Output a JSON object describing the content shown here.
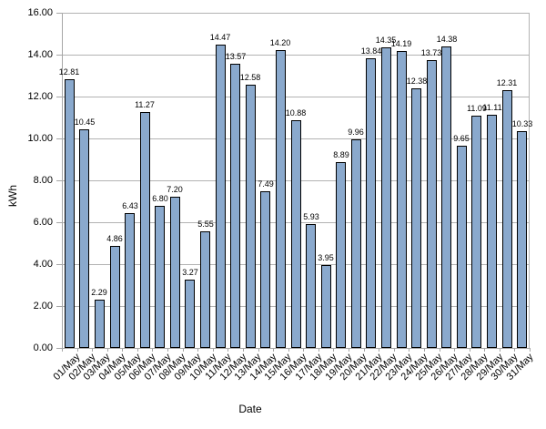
{
  "chart_data": {
    "type": "bar",
    "title": "",
    "xlabel": "Date",
    "ylabel": "kWh",
    "categories": [
      "01/May",
      "02/May",
      "03/May",
      "04/May",
      "05/May",
      "06/May",
      "07/May",
      "08/May",
      "09/May",
      "10/May",
      "11/May",
      "12/May",
      "13/May",
      "14/May",
      "15/May",
      "16/May",
      "17/May",
      "18/May",
      "19/May",
      "20/May",
      "21/May",
      "22/May",
      "23/May",
      "24/May",
      "25/May",
      "26/May",
      "27/May",
      "28/May",
      "29/May",
      "30/May",
      "31/May"
    ],
    "values": [
      12.81,
      10.45,
      2.29,
      4.86,
      6.43,
      11.27,
      6.8,
      7.2,
      3.27,
      5.55,
      14.47,
      13.57,
      12.58,
      7.49,
      14.2,
      10.88,
      5.93,
      3.95,
      8.89,
      9.96,
      13.84,
      14.35,
      14.19,
      12.38,
      13.73,
      14.38,
      9.65,
      11.09,
      11.11,
      12.31,
      10.33
    ],
    "data_labels": [
      "12.81",
      "10.45",
      "2.29",
      "4.86",
      "6.43",
      "11.27",
      "6.80",
      "7.20",
      "3.27",
      "5.55",
      "14.47",
      "13.57",
      "12.58",
      "7.49",
      "14.20",
      "10.88",
      "5.93",
      "3.95",
      "8.89",
      "9.96",
      "13.84",
      "14.35",
      "14.19",
      "12.38",
      "13.73",
      "14.38",
      "9.65",
      "11.09",
      "11.11",
      "12.31",
      "10.33"
    ],
    "ylim": [
      0,
      16
    ],
    "ytick_step": 2,
    "ytick_labels": [
      "0.00",
      "2.00",
      "4.00",
      "6.00",
      "8.00",
      "10.00",
      "12.00",
      "14.00",
      "16.00"
    ],
    "grid": true,
    "legend": "none",
    "colors": {
      "bar_fill": "#8AA9CD",
      "bar_border": "#000000",
      "gridline": "#b3b3b3",
      "axis_line": "#a6a6a6",
      "text": "#000000",
      "background": "#FFFFFF"
    }
  }
}
